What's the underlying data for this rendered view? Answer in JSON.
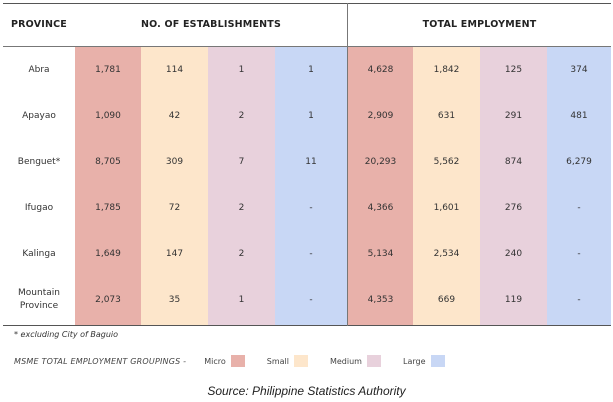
{
  "headers": {
    "province": "PROVINCE",
    "establishments": "NO. OF ESTABLISHMENTS",
    "employment": "TOTAL EMPLOYMENT"
  },
  "rows": [
    {
      "province": "Abra",
      "est": [
        "1,781",
        "114",
        "1",
        "1"
      ],
      "emp": [
        "4,628",
        "1,842",
        "125",
        "374"
      ]
    },
    {
      "province": "Apayao",
      "est": [
        "1,090",
        "42",
        "2",
        "1"
      ],
      "emp": [
        "2,909",
        "631",
        "291",
        "481"
      ]
    },
    {
      "province": "Benguet*",
      "est": [
        "8,705",
        "309",
        "7",
        "11"
      ],
      "emp": [
        "20,293",
        "5,562",
        "874",
        "6,279"
      ]
    },
    {
      "province": "Ifugao",
      "est": [
        "1,785",
        "72",
        "2",
        "-"
      ],
      "emp": [
        "4,366",
        "1,601",
        "276",
        "-"
      ]
    },
    {
      "province": "Kalinga",
      "est": [
        "1,649",
        "147",
        "2",
        "-"
      ],
      "emp": [
        "5,134",
        "2,534",
        "240",
        "-"
      ]
    },
    {
      "province": "Mountain Province",
      "est": [
        "2,073",
        "35",
        "1",
        "-"
      ],
      "emp": [
        "4,353",
        "669",
        "119",
        "-"
      ]
    }
  ],
  "footnote": "* excluding City of Baguio",
  "legend": {
    "title": "MSME TOTAL EMPLOYMENT GROUPINGS -",
    "items": [
      {
        "label": "Micro",
        "color": "#e8b1aa"
      },
      {
        "label": "Small",
        "color": "#fde6cb"
      },
      {
        "label": "Medium",
        "color": "#e8d1dc"
      },
      {
        "label": "Large",
        "color": "#c8d7f5"
      }
    ]
  },
  "source": "Source:  Philippine Statistics Authority"
}
